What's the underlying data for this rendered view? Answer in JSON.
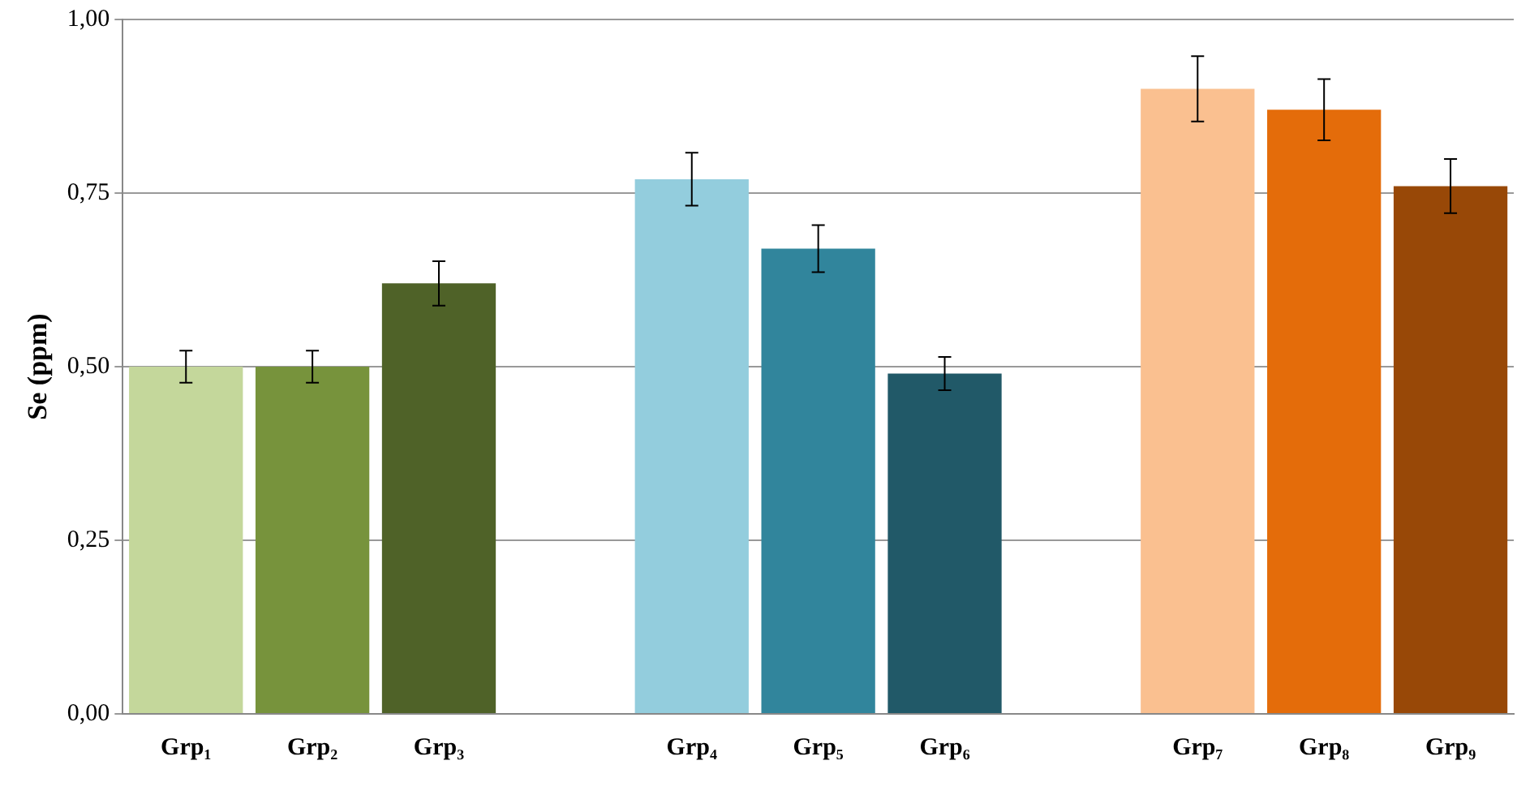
{
  "chart_data": {
    "type": "bar",
    "ylabel": "Se (ppm)",
    "categories": [
      "Grp₁",
      "Grp₂",
      "Grp₃",
      null,
      "Grp₄",
      "Grp₅",
      "Grp₆",
      null,
      "Grp₇",
      "Grp₈",
      "Grp₉"
    ],
    "values": [
      0.5,
      0.5,
      0.62,
      null,
      0.77,
      0.67,
      0.49,
      null,
      0.9,
      0.87,
      0.76
    ],
    "colors": [
      "#c4d79b",
      "#77933c",
      "#4f6228",
      "#ffffff",
      "#93cddd",
      "#31859c",
      "#215968",
      "#ffffff",
      "#fac090",
      "#e46c0a",
      "#984807"
    ],
    "errors": [
      0.023,
      0.023,
      0.032,
      null,
      0.038,
      0.034,
      0.024,
      null,
      0.047,
      0.044,
      0.039
    ],
    "ylim": [
      0,
      1
    ],
    "yticks": [
      {
        "value": 0,
        "label": "0,00"
      },
      {
        "value": 0.25,
        "label": "0,25"
      },
      {
        "value": 0.5,
        "label": "0,50"
      },
      {
        "value": 0.75,
        "label": "0,75"
      },
      {
        "value": 1,
        "label": "1,00"
      }
    ],
    "grid": "y",
    "legend": false
  }
}
